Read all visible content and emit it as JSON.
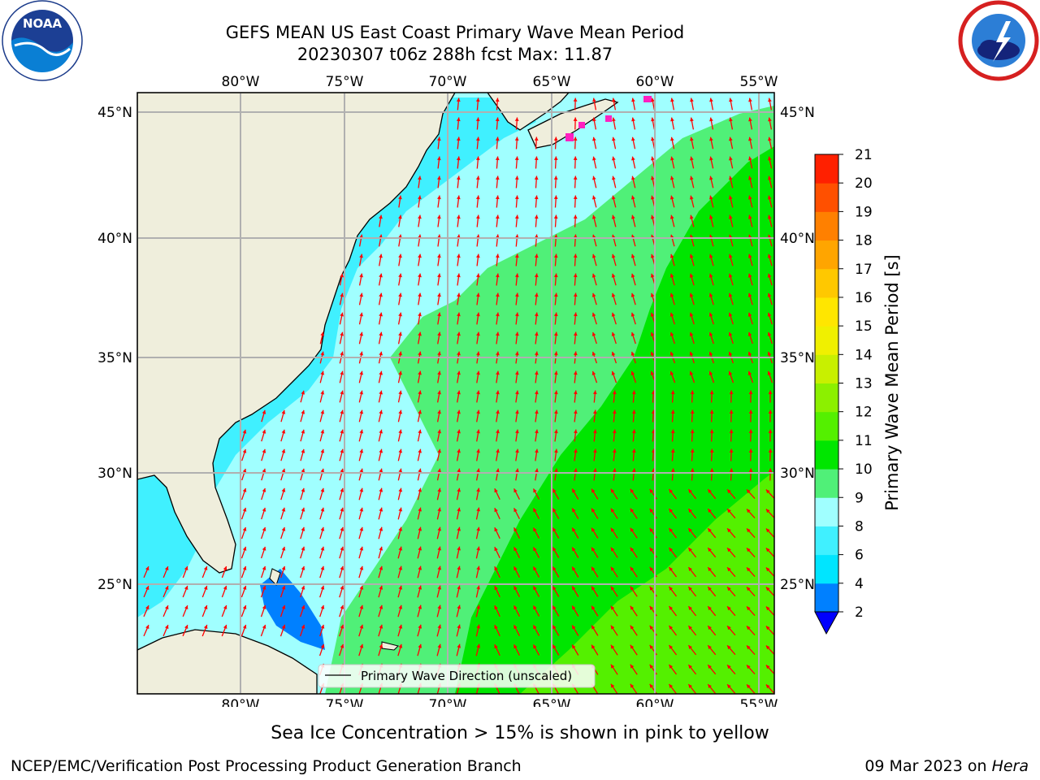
{
  "header": {
    "title_line1": "GEFS MEAN US East Coast Primary Wave Mean Period",
    "title_line2": "20230307 t06z 288h fcst   Max: 11.87"
  },
  "logos": {
    "left": {
      "icon": "noaa-logo",
      "text": "NOAA",
      "ring_text": "NATIONAL OCEANIC AND ATMOSPHERIC ADMINISTRATION · U.S. DEPARTMENT OF COMMERCE"
    },
    "right": {
      "icon": "nws-logo",
      "ring_text": "NATIONAL WEATHER SERVICE"
    }
  },
  "map": {
    "lon_ticks": [
      "80°W",
      "75°W",
      "70°W",
      "65°W",
      "60°W",
      "55°W"
    ],
    "lat_ticks": [
      "45°N",
      "40°N",
      "35°N",
      "30°N",
      "25°N"
    ],
    "extent": {
      "lon_min": -85,
      "lon_max": -54.2,
      "lat_min": 20.5,
      "lat_max": 46
    },
    "legend_label": "Primary Wave Direction (unscaled)",
    "arrow_color": "#ff0000",
    "land_color": "#efeedc",
    "grid": true
  },
  "colorbar": {
    "label": "Primary Wave Mean Period [s]",
    "ticks": [
      "2",
      "4",
      "6",
      "8",
      "9",
      "10",
      "11",
      "12",
      "13",
      "14",
      "15",
      "16",
      "17",
      "18",
      "19",
      "20",
      "21"
    ],
    "colors": [
      "#0080ff",
      "#00e5ff",
      "#40f0ff",
      "#a0ffff",
      "#50f078",
      "#00e600",
      "#54f000",
      "#8cf000",
      "#c8f000",
      "#f0f000",
      "#ffe600",
      "#ffc800",
      "#ffa500",
      "#ff8000",
      "#ff5000",
      "#ff2000"
    ],
    "extend_color": "#0000ff"
  },
  "footer": {
    "sea_ice_note": "Sea Ice Concentration > 15% is shown in pink to yellow",
    "credit": "NCEP/EMC/Verification Post Processing Product Generation Branch",
    "date": "09 Mar 2023 on",
    "machine": "Hera"
  }
}
